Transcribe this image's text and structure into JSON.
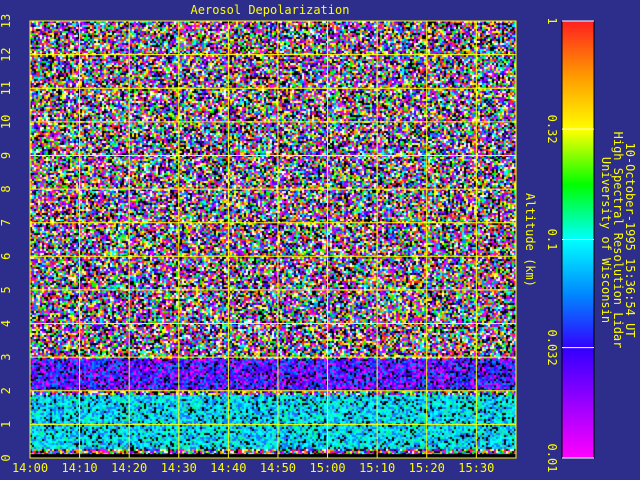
{
  "chart_data": {
    "type": "heatmap",
    "title": "Aerosol Depolarization",
    "ylabel": "Altitude (km)",
    "xlabel": "",
    "x_ticks": [
      "14:00",
      "14:10",
      "14:20",
      "14:30",
      "14:40",
      "14:50",
      "15:00",
      "15:10",
      "15:20",
      "15:30"
    ],
    "y_ticks": [
      "0",
      "1",
      "2",
      "3",
      "4",
      "5",
      "6",
      "7",
      "8",
      "9",
      "10",
      "11",
      "12",
      "13"
    ],
    "xlim": [
      "14:00",
      "15:38"
    ],
    "ylim": [
      0,
      13
    ],
    "grid": true,
    "colorbar": {
      "scale": "log",
      "range": [
        0.01,
        1
      ],
      "ticks": [
        "1",
        "0.32",
        "0.1",
        "0.032",
        "0.01"
      ],
      "colors": [
        "#ff2020",
        "#ff9900",
        "#ffff00",
        "#00ff00",
        "#00ffff",
        "#0088ff",
        "#3300ff",
        "#9900ff",
        "#ff00ff"
      ]
    },
    "layers": [
      {
        "altitude_range_km": [
          0.3,
          1.9
        ],
        "depolarization": 0.05,
        "description_color": "cyan/blue"
      },
      {
        "altitude_range_km": [
          2.0,
          3.0
        ],
        "depolarization": 0.02,
        "description_color": "blue/purple"
      }
    ]
  },
  "credits": {
    "line1": "University of Wisconsin",
    "line2": "High Spectral Resolution Lidar",
    "line3": "10-October-1995 15:36:54 UT"
  },
  "colors": {
    "background": "#2d2d8c",
    "grid": "#ffff00",
    "text": "#ffff00"
  }
}
